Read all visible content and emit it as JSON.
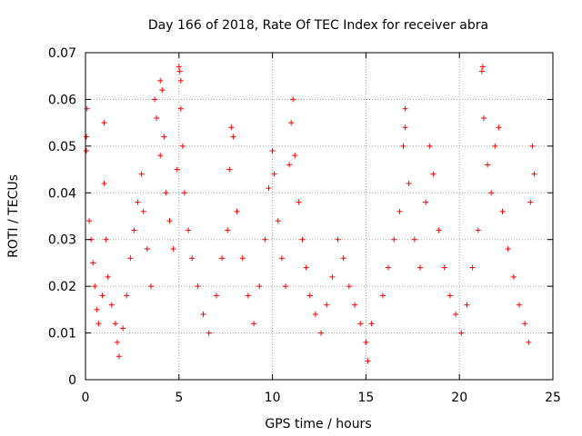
{
  "chart_data": {
    "type": "scatter",
    "title": "Day 166 of 2018, Rate Of TEC Index for receiver abra",
    "xlabel": "GPS time / hours",
    "ylabel": "ROTI / TECUs",
    "xlim": [
      0,
      25
    ],
    "ylim": [
      0,
      0.07
    ],
    "xticks": [
      "0",
      "5",
      "10",
      "15",
      "20",
      "25"
    ],
    "yticks": [
      "0",
      "0.01",
      "0.02",
      "0.03",
      "0.04",
      "0.05",
      "0.06",
      "0.07"
    ],
    "grid": true,
    "marker": "+",
    "color": "#ff0000",
    "series": [
      {
        "values": [
          [
            0.05,
            0.052
          ],
          [
            0.05,
            0.049
          ],
          [
            0.08,
            0.058
          ],
          [
            0.2,
            0.034
          ],
          [
            0.3,
            0.03
          ],
          [
            0.4,
            0.025
          ],
          [
            0.5,
            0.02
          ],
          [
            0.6,
            0.015
          ],
          [
            0.7,
            0.012
          ],
          [
            0.9,
            0.018
          ],
          [
            1.0,
            0.055
          ],
          [
            1.0,
            0.042
          ],
          [
            1.1,
            0.03
          ],
          [
            1.2,
            0.022
          ],
          [
            1.4,
            0.016
          ],
          [
            1.6,
            0.012
          ],
          [
            1.7,
            0.008
          ],
          [
            1.8,
            0.005
          ],
          [
            2.0,
            0.011
          ],
          [
            2.2,
            0.018
          ],
          [
            2.4,
            0.026
          ],
          [
            2.6,
            0.032
          ],
          [
            2.8,
            0.038
          ],
          [
            3.0,
            0.044
          ],
          [
            3.1,
            0.036
          ],
          [
            3.3,
            0.028
          ],
          [
            3.5,
            0.02
          ],
          [
            3.7,
            0.06
          ],
          [
            3.8,
            0.056
          ],
          [
            4.0,
            0.064
          ],
          [
            4.0,
            0.048
          ],
          [
            4.1,
            0.062
          ],
          [
            4.2,
            0.052
          ],
          [
            4.3,
            0.04
          ],
          [
            4.5,
            0.034
          ],
          [
            4.7,
            0.028
          ],
          [
            4.9,
            0.045
          ],
          [
            5.0,
            0.067
          ],
          [
            5.05,
            0.066
          ],
          [
            5.1,
            0.064
          ],
          [
            5.1,
            0.058
          ],
          [
            5.2,
            0.05
          ],
          [
            5.3,
            0.04
          ],
          [
            5.5,
            0.032
          ],
          [
            5.7,
            0.026
          ],
          [
            6.0,
            0.02
          ],
          [
            6.3,
            0.014
          ],
          [
            6.6,
            0.01
          ],
          [
            7.0,
            0.018
          ],
          [
            7.3,
            0.026
          ],
          [
            7.6,
            0.032
          ],
          [
            7.7,
            0.045
          ],
          [
            7.8,
            0.054
          ],
          [
            7.9,
            0.052
          ],
          [
            8.1,
            0.036
          ],
          [
            8.4,
            0.026
          ],
          [
            8.7,
            0.018
          ],
          [
            9.0,
            0.012
          ],
          [
            9.3,
            0.02
          ],
          [
            9.6,
            0.03
          ],
          [
            9.8,
            0.041
          ],
          [
            10.0,
            0.049
          ],
          [
            10.1,
            0.044
          ],
          [
            10.3,
            0.034
          ],
          [
            10.5,
            0.026
          ],
          [
            10.7,
            0.02
          ],
          [
            10.9,
            0.046
          ],
          [
            11.0,
            0.055
          ],
          [
            11.1,
            0.06
          ],
          [
            11.2,
            0.048
          ],
          [
            11.4,
            0.038
          ],
          [
            11.6,
            0.03
          ],
          [
            11.8,
            0.024
          ],
          [
            12.0,
            0.018
          ],
          [
            12.3,
            0.014
          ],
          [
            12.6,
            0.01
          ],
          [
            12.9,
            0.016
          ],
          [
            13.2,
            0.022
          ],
          [
            13.5,
            0.03
          ],
          [
            13.8,
            0.026
          ],
          [
            14.1,
            0.02
          ],
          [
            14.4,
            0.016
          ],
          [
            14.7,
            0.012
          ],
          [
            15.0,
            0.008
          ],
          [
            15.1,
            0.004
          ],
          [
            15.3,
            0.012
          ],
          [
            15.9,
            0.018
          ],
          [
            16.2,
            0.024
          ],
          [
            16.5,
            0.03
          ],
          [
            16.8,
            0.036
          ],
          [
            17.0,
            0.05
          ],
          [
            17.1,
            0.058
          ],
          [
            17.1,
            0.054
          ],
          [
            17.3,
            0.042
          ],
          [
            17.6,
            0.03
          ],
          [
            17.9,
            0.024
          ],
          [
            18.2,
            0.038
          ],
          [
            18.4,
            0.05
          ],
          [
            18.6,
            0.044
          ],
          [
            18.9,
            0.032
          ],
          [
            19.2,
            0.024
          ],
          [
            19.5,
            0.018
          ],
          [
            19.8,
            0.014
          ],
          [
            20.1,
            0.01
          ],
          [
            20.4,
            0.016
          ],
          [
            20.7,
            0.024
          ],
          [
            21.0,
            0.032
          ],
          [
            21.2,
            0.066
          ],
          [
            21.25,
            0.067
          ],
          [
            21.3,
            0.056
          ],
          [
            21.5,
            0.046
          ],
          [
            21.7,
            0.04
          ],
          [
            21.9,
            0.05
          ],
          [
            22.1,
            0.054
          ],
          [
            22.3,
            0.036
          ],
          [
            22.6,
            0.028
          ],
          [
            22.9,
            0.022
          ],
          [
            23.2,
            0.016
          ],
          [
            23.5,
            0.012
          ],
          [
            23.7,
            0.008
          ],
          [
            23.8,
            0.038
          ],
          [
            23.9,
            0.05
          ],
          [
            24.0,
            0.044
          ]
        ]
      }
    ]
  }
}
